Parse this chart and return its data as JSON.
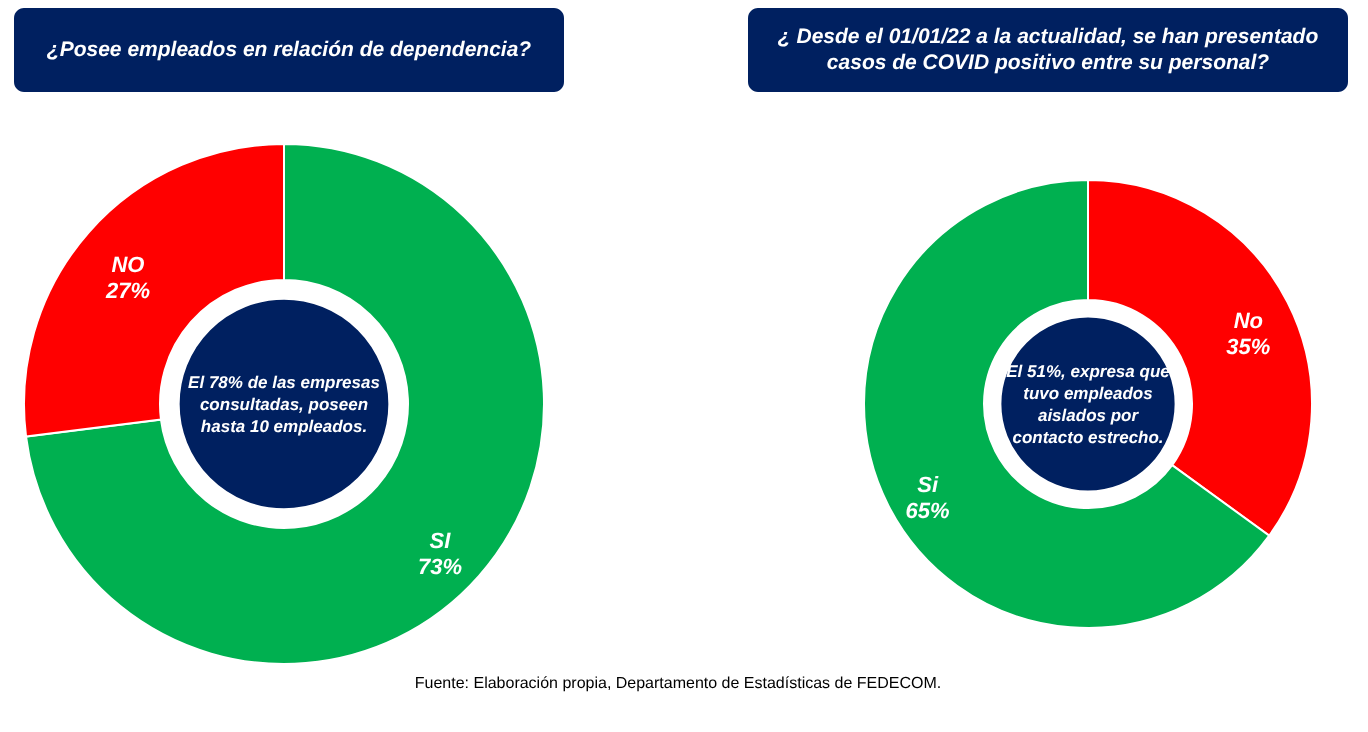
{
  "chart_data": [
    {
      "type": "donut",
      "title": "¿Posee empleados en relación de dependencia?",
      "categories": [
        "SI",
        "NO"
      ],
      "values": [
        73,
        27
      ],
      "value_labels": [
        "73%",
        "27%"
      ],
      "colors": [
        "#00b050",
        "#ff0000"
      ],
      "legend": false,
      "annotations": [
        "El 78% de las empresas consultadas, poseen hasta 10 empleados.",
        "Fuente: Elaboración propia, Departamento de Estadísticas de FEDECOM."
      ]
    },
    {
      "type": "donut",
      "title": "¿ Desde el 01/01/22 a la actualidad, se han presentado casos de COVID positivo entre su personal?",
      "categories": [
        "No",
        "Si"
      ],
      "values": [
        35,
        65
      ],
      "value_labels": [
        "35%",
        "65%"
      ],
      "colors": [
        "#ff0000",
        "#00b050"
      ],
      "legend": false,
      "annotations": [
        "El 51%, expresa que tuvo empleados aislados por contacto estrecho."
      ]
    }
  ]
}
